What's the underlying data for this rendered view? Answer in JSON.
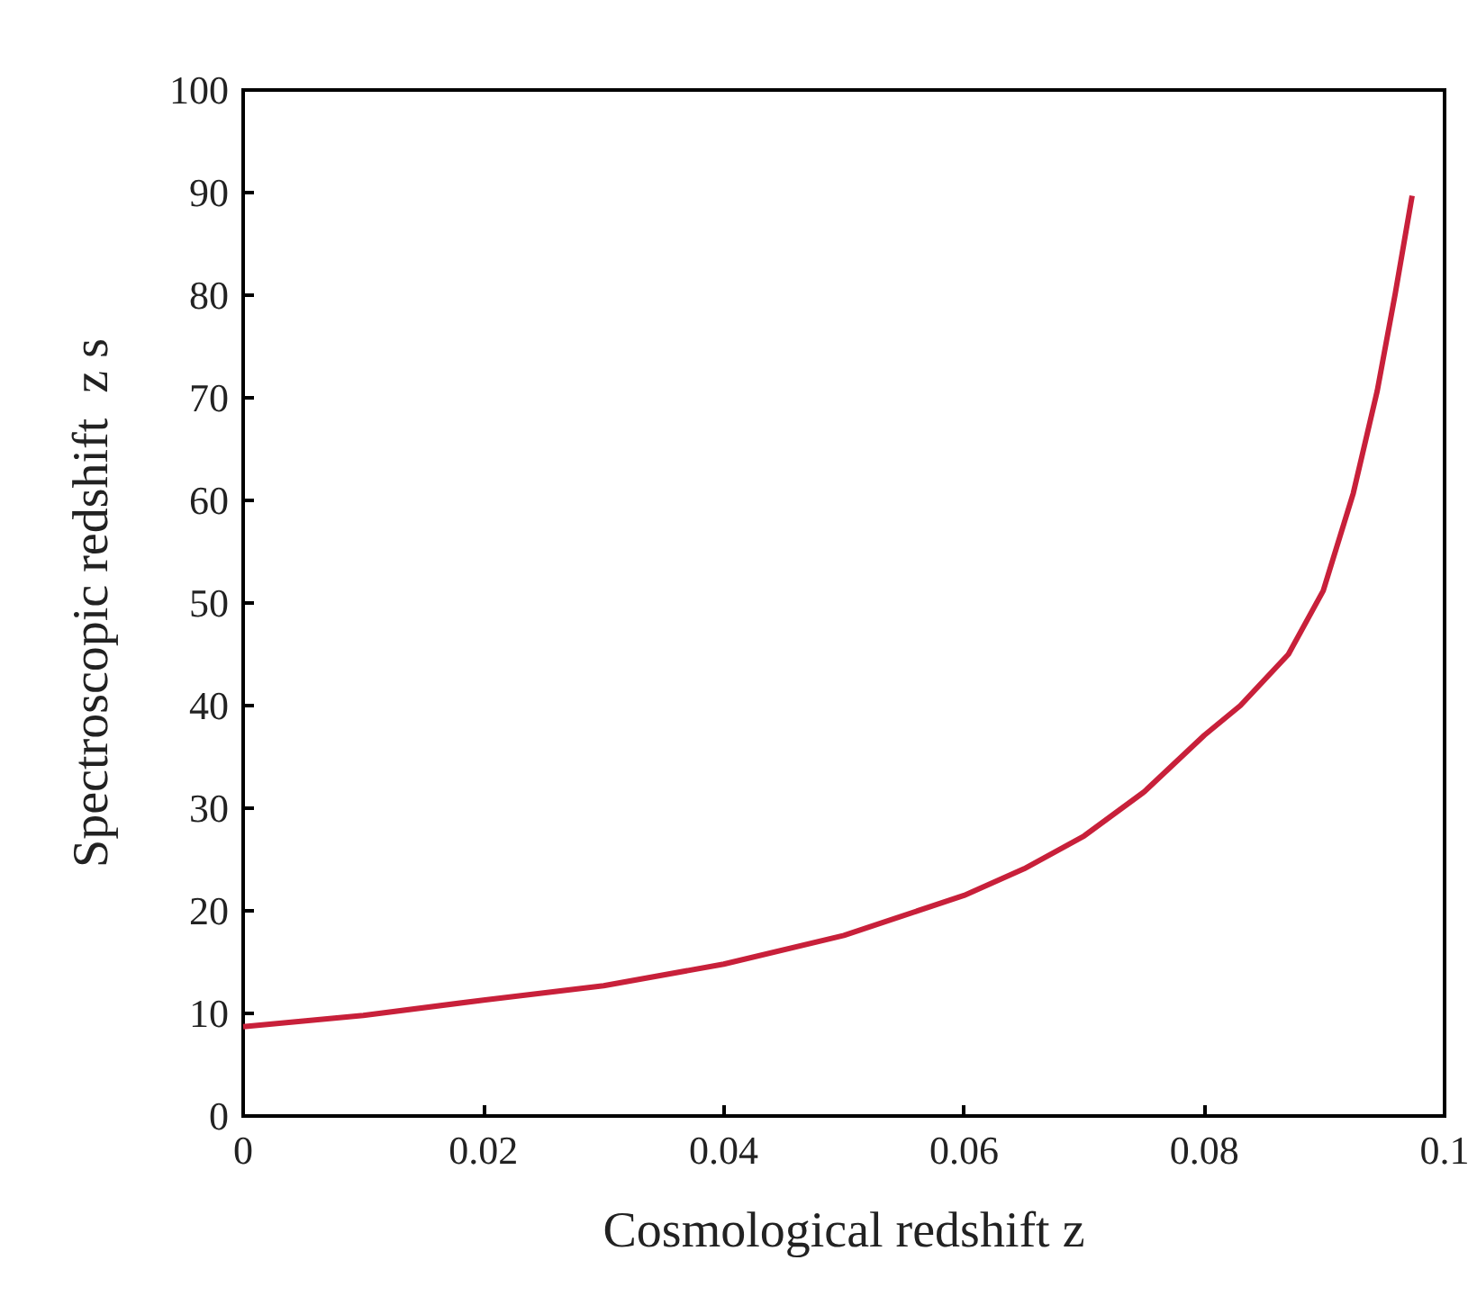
{
  "chart_data": {
    "type": "line",
    "xlabel": "Cosmological redshift z",
    "ylabel": "Spectroscopic redshift  z s",
    "series": [
      {
        "color": "#c8203a",
        "x": [
          0,
          0.01,
          0.02,
          0.03,
          0.04,
          0.05,
          0.06,
          0.065,
          0.07,
          0.075,
          0.08,
          0.083,
          0.087,
          0.0899,
          0.0924,
          0.0944,
          0.0959,
          0.0973
        ],
        "values": [
          8.7,
          9.8,
          11.3,
          12.7,
          14.8,
          17.6,
          21.5,
          24.1,
          27.3,
          31.6,
          37.1,
          40,
          45,
          51.2,
          60.7,
          70.7,
          80.2,
          89.7
        ]
      }
    ],
    "xlim": [
      0,
      0.1
    ],
    "xticks": [
      0,
      0.02,
      0.04,
      0.06,
      0.08,
      0.1
    ],
    "ylim": [
      0,
      100
    ],
    "yticks": [
      0,
      10,
      20,
      30,
      40,
      50,
      60,
      70,
      80,
      90,
      100
    ],
    "grid": false,
    "marker": "none",
    "line_style": "solid"
  }
}
